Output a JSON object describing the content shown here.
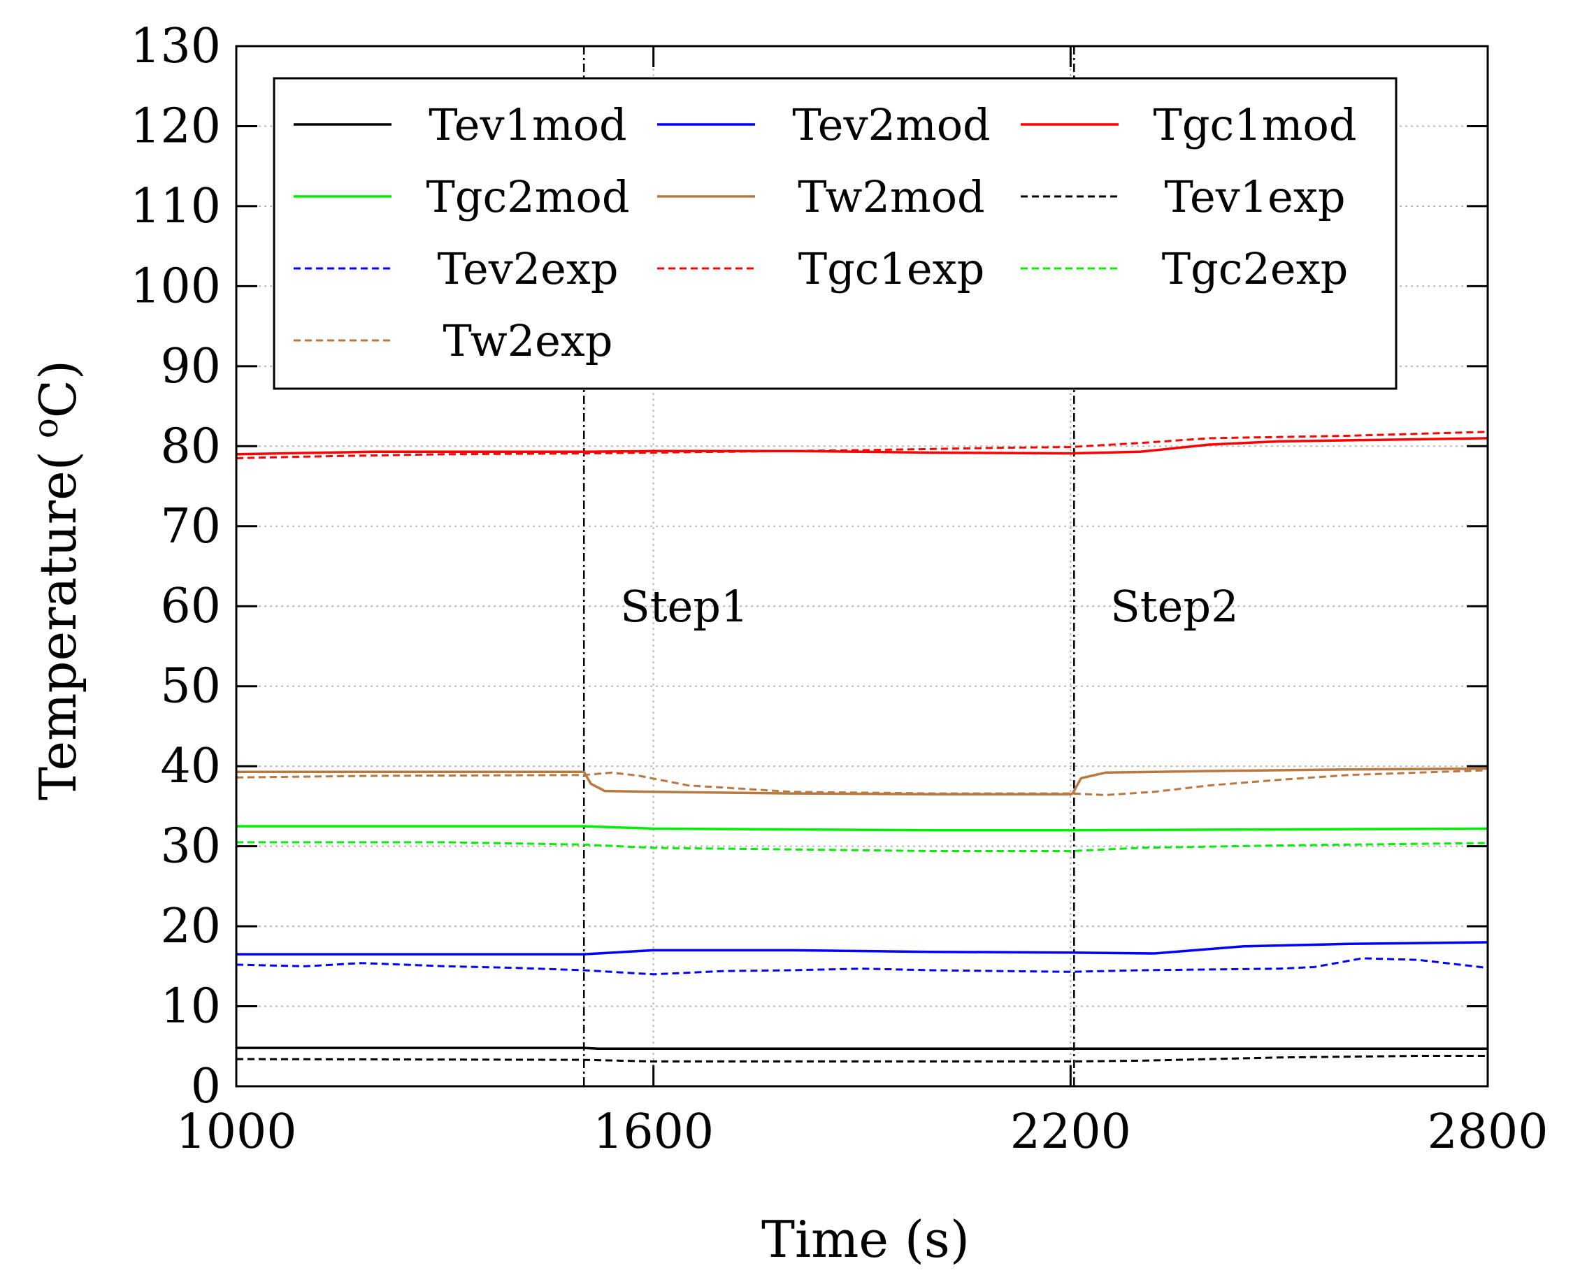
{
  "chart_data": {
    "type": "line",
    "title": "",
    "xlabel": "Time (s)",
    "ylabel": "Temperature( °C)",
    "ylabel_prefix": "Temperature(",
    "ylabel_sup": "o",
    "ylabel_unit": "C)",
    "xlim": [
      1000,
      2800
    ],
    "ylim": [
      0,
      130
    ],
    "xticks": [
      1000,
      1600,
      2200,
      2800
    ],
    "xtick_labels": [
      "1000",
      "1600",
      "2200",
      "2800"
    ],
    "yticks": [
      0,
      10,
      20,
      30,
      40,
      50,
      60,
      70,
      80,
      90,
      100,
      110,
      120,
      130
    ],
    "ytick_labels": [
      "0",
      "10",
      "20",
      "30",
      "40",
      "50",
      "60",
      "70",
      "80",
      "90",
      "100",
      "110",
      "120",
      "130"
    ],
    "grid": true,
    "legend_position": "top",
    "annotations": [
      {
        "label": "Step1",
        "x": 1500
      },
      {
        "label": "Step2",
        "x": 2205
      }
    ],
    "series": [
      {
        "name": "Tev1mod",
        "color": "#000000",
        "style": "solid",
        "points": [
          [
            1000,
            4.8
          ],
          [
            1500,
            4.8
          ],
          [
            1520,
            4.7
          ],
          [
            2200,
            4.7
          ],
          [
            2800,
            4.7
          ]
        ]
      },
      {
        "name": "Tev2mod",
        "color": "#0000ff",
        "style": "solid",
        "points": [
          [
            1000,
            16.5
          ],
          [
            1500,
            16.5
          ],
          [
            1600,
            17.0
          ],
          [
            1800,
            17.0
          ],
          [
            2000,
            16.8
          ],
          [
            2200,
            16.7
          ],
          [
            2320,
            16.6
          ],
          [
            2450,
            17.5
          ],
          [
            2600,
            17.8
          ],
          [
            2800,
            18.0
          ]
        ]
      },
      {
        "name": "Tgc1mod",
        "color": "#ff0000",
        "style": "solid",
        "points": [
          [
            1000,
            79.0
          ],
          [
            1200,
            79.3
          ],
          [
            1500,
            79.3
          ],
          [
            1600,
            79.4
          ],
          [
            1800,
            79.4
          ],
          [
            2000,
            79.2
          ],
          [
            2200,
            79.1
          ],
          [
            2300,
            79.3
          ],
          [
            2400,
            80.2
          ],
          [
            2500,
            80.6
          ],
          [
            2800,
            81.0
          ]
        ]
      },
      {
        "name": "Tgc2mod",
        "color": "#00ee00",
        "style": "solid",
        "points": [
          [
            1000,
            32.5
          ],
          [
            1500,
            32.5
          ],
          [
            1600,
            32.2
          ],
          [
            1800,
            32.1
          ],
          [
            2000,
            32.0
          ],
          [
            2200,
            32.0
          ],
          [
            2500,
            32.1
          ],
          [
            2800,
            32.2
          ]
        ]
      },
      {
        "name": "Tw2mod",
        "color": "#b87840",
        "style": "solid",
        "points": [
          [
            1000,
            39.3
          ],
          [
            1500,
            39.3
          ],
          [
            1510,
            37.8
          ],
          [
            1530,
            36.9
          ],
          [
            1600,
            36.8
          ],
          [
            1800,
            36.6
          ],
          [
            2000,
            36.5
          ],
          [
            2200,
            36.5
          ],
          [
            2203,
            36.6
          ],
          [
            2215,
            38.5
          ],
          [
            2250,
            39.2
          ],
          [
            2400,
            39.4
          ],
          [
            2600,
            39.6
          ],
          [
            2800,
            39.7
          ]
        ]
      },
      {
        "name": "Tev1exp",
        "color": "#000000",
        "style": "dashed",
        "points": [
          [
            1000,
            3.4
          ],
          [
            1500,
            3.3
          ],
          [
            1600,
            3.1
          ],
          [
            1800,
            3.1
          ],
          [
            2000,
            3.1
          ],
          [
            2200,
            3.1
          ],
          [
            2300,
            3.2
          ],
          [
            2500,
            3.6
          ],
          [
            2700,
            3.8
          ],
          [
            2800,
            3.8
          ]
        ]
      },
      {
        "name": "Tev2exp",
        "color": "#0000ff",
        "style": "dashed",
        "points": [
          [
            1000,
            15.2
          ],
          [
            1100,
            15.0
          ],
          [
            1180,
            15.4
          ],
          [
            1300,
            15.0
          ],
          [
            1400,
            14.8
          ],
          [
            1500,
            14.5
          ],
          [
            1600,
            14.0
          ],
          [
            1700,
            14.4
          ],
          [
            1800,
            14.5
          ],
          [
            1900,
            14.7
          ],
          [
            2000,
            14.5
          ],
          [
            2200,
            14.3
          ],
          [
            2300,
            14.5
          ],
          [
            2400,
            14.6
          ],
          [
            2500,
            14.7
          ],
          [
            2550,
            14.9
          ],
          [
            2620,
            16.0
          ],
          [
            2700,
            15.8
          ],
          [
            2800,
            14.8
          ]
        ]
      },
      {
        "name": "Tgc1exp",
        "color": "#ff0000",
        "style": "dashed",
        "points": [
          [
            1000,
            78.5
          ],
          [
            1100,
            78.7
          ],
          [
            1300,
            79.0
          ],
          [
            1500,
            79.1
          ],
          [
            1700,
            79.3
          ],
          [
            1900,
            79.5
          ],
          [
            2100,
            79.8
          ],
          [
            2200,
            79.9
          ],
          [
            2300,
            80.4
          ],
          [
            2400,
            81.0
          ],
          [
            2600,
            81.3
          ],
          [
            2800,
            81.8
          ]
        ]
      },
      {
        "name": "Tgc2exp",
        "color": "#00ee00",
        "style": "dashed",
        "points": [
          [
            1000,
            30.5
          ],
          [
            1300,
            30.5
          ],
          [
            1500,
            30.2
          ],
          [
            1600,
            29.8
          ],
          [
            1800,
            29.6
          ],
          [
            2000,
            29.4
          ],
          [
            2200,
            29.4
          ],
          [
            2300,
            29.8
          ],
          [
            2500,
            30.1
          ],
          [
            2800,
            30.4
          ]
        ]
      },
      {
        "name": "Tw2exp",
        "color": "#b87840",
        "style": "dashed",
        "points": [
          [
            1000,
            38.6
          ],
          [
            1200,
            38.8
          ],
          [
            1500,
            38.9
          ],
          [
            1540,
            39.2
          ],
          [
            1580,
            38.8
          ],
          [
            1650,
            37.6
          ],
          [
            1800,
            36.8
          ],
          [
            2000,
            36.6
          ],
          [
            2200,
            36.6
          ],
          [
            2250,
            36.4
          ],
          [
            2320,
            36.8
          ],
          [
            2400,
            37.6
          ],
          [
            2500,
            38.3
          ],
          [
            2600,
            38.9
          ],
          [
            2700,
            39.2
          ],
          [
            2800,
            39.5
          ]
        ]
      }
    ]
  }
}
